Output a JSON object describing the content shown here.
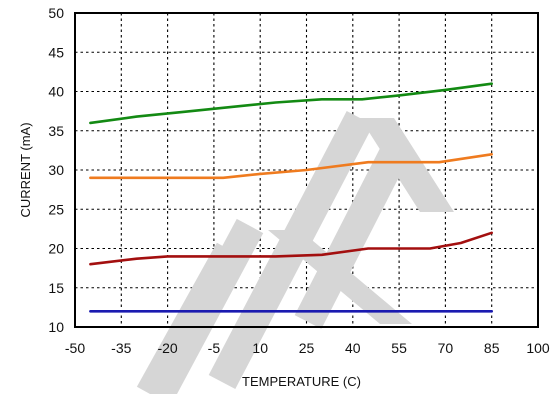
{
  "chart_data": {
    "type": "line",
    "xlabel": "TEMPERATURE (C)",
    "ylabel": "CURRENT (mA)",
    "xlim": [
      -50,
      100
    ],
    "ylim": [
      10,
      50
    ],
    "x_ticks": [
      -50,
      -35,
      -20,
      -5,
      10,
      25,
      40,
      55,
      70,
      85,
      100
    ],
    "y_ticks": [
      10,
      15,
      20,
      25,
      30,
      35,
      40,
      45,
      50
    ],
    "x_tick_labels": [
      "-50",
      "-35",
      "-20",
      "-5",
      "10",
      "25",
      "40",
      "55",
      "70",
      "85",
      "100"
    ],
    "y_tick_labels": [
      "10",
      "15",
      "20",
      "25",
      "30",
      "35",
      "40",
      "45",
      "50"
    ],
    "grid": true,
    "grid_style": "dotted",
    "series": [
      {
        "color": "#138a13",
        "points": [
          [
            -45,
            36
          ],
          [
            -30,
            36.8
          ],
          [
            -15,
            37.4
          ],
          [
            0,
            38
          ],
          [
            15,
            38.6
          ],
          [
            30,
            39
          ],
          [
            43,
            39
          ],
          [
            55,
            39.5
          ],
          [
            70,
            40.2
          ],
          [
            85,
            41
          ]
        ]
      },
      {
        "color": "#ef7b1f",
        "points": [
          [
            -45,
            29
          ],
          [
            -30,
            29
          ],
          [
            -20,
            29
          ],
          [
            -2,
            29
          ],
          [
            10,
            29.5
          ],
          [
            25,
            30
          ],
          [
            45,
            31
          ],
          [
            68,
            31
          ],
          [
            85,
            32
          ]
        ]
      },
      {
        "color": "#a30f0f",
        "points": [
          [
            -45,
            18
          ],
          [
            -30,
            18.7
          ],
          [
            -20,
            19
          ],
          [
            0,
            19
          ],
          [
            15,
            19
          ],
          [
            30,
            19.2
          ],
          [
            45,
            20
          ],
          [
            65,
            20
          ],
          [
            75,
            20.7
          ],
          [
            85,
            22
          ]
        ]
      },
      {
        "color": "#1a1ab0",
        "points": [
          [
            -45,
            12
          ],
          [
            85,
            12
          ]
        ]
      }
    ]
  },
  "watermark": {
    "color": "#d6d6d6"
  }
}
